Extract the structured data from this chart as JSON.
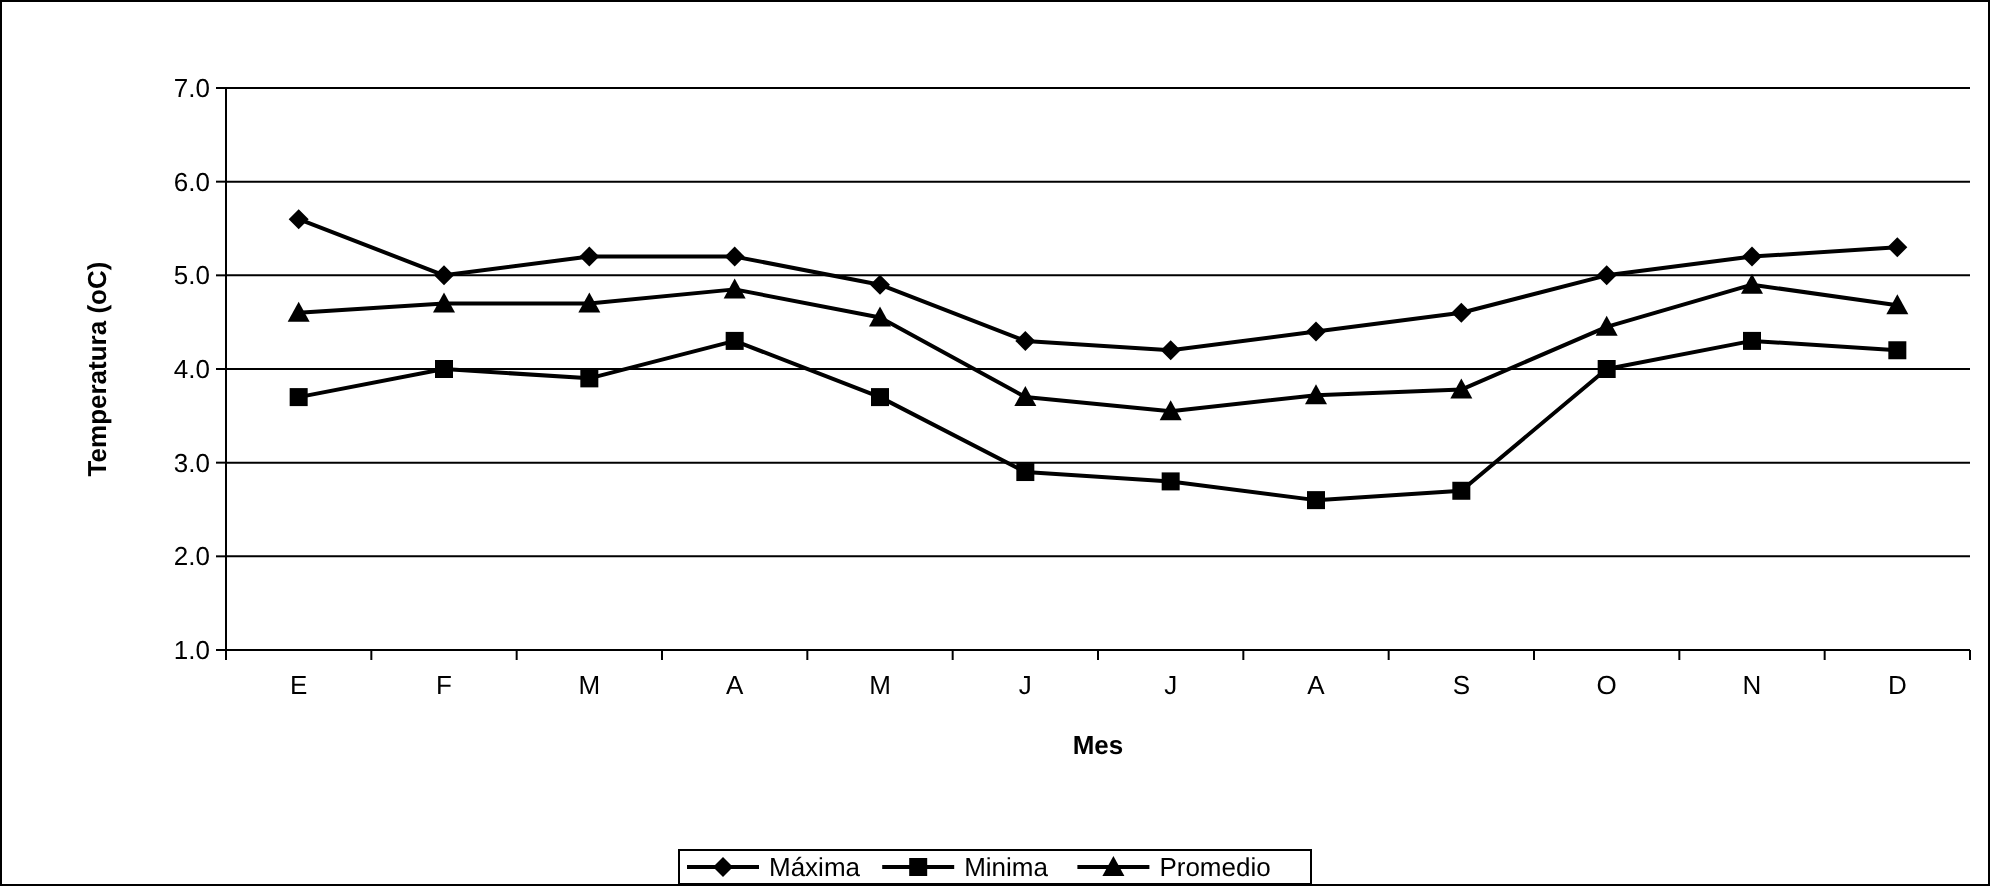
{
  "chart_data": {
    "type": "line",
    "xlabel": "Mes",
    "ylabel": "Temperatura (oC)",
    "categories": [
      "E",
      "F",
      "M",
      "A",
      "M",
      "J",
      "J",
      "A",
      "S",
      "O",
      "N",
      "D"
    ],
    "ylim": [
      1,
      7
    ],
    "yticks": [
      {
        "value": 1,
        "label": "1.0"
      },
      {
        "value": 2,
        "label": "2.0"
      },
      {
        "value": 3,
        "label": "3.0"
      },
      {
        "value": 4,
        "label": "4.0"
      },
      {
        "value": 5,
        "label": "5.0"
      },
      {
        "value": 6,
        "label": "6.0"
      },
      {
        "value": 7,
        "label": "7.0"
      }
    ],
    "grid": "y",
    "legend": "bottom",
    "line_style": "solid",
    "series": [
      {
        "name": "Máxima",
        "color": "#000000",
        "marker": "diamond",
        "values": [
          5.6,
          5.0,
          5.2,
          5.2,
          4.9,
          4.3,
          4.2,
          4.4,
          4.6,
          5.0,
          5.2,
          5.3
        ]
      },
      {
        "name": "Minima",
        "color": "#000000",
        "marker": "square",
        "values": [
          3.7,
          4.0,
          3.9,
          4.3,
          3.7,
          2.9,
          2.8,
          2.6,
          2.7,
          4.0,
          4.3,
          4.2
        ]
      },
      {
        "name": "Promedio",
        "color": "#000000",
        "marker": "triangle",
        "values": [
          4.6,
          4.7,
          4.7,
          4.85,
          4.55,
          3.7,
          3.55,
          3.72,
          3.78,
          4.45,
          4.9,
          4.68
        ]
      }
    ]
  }
}
